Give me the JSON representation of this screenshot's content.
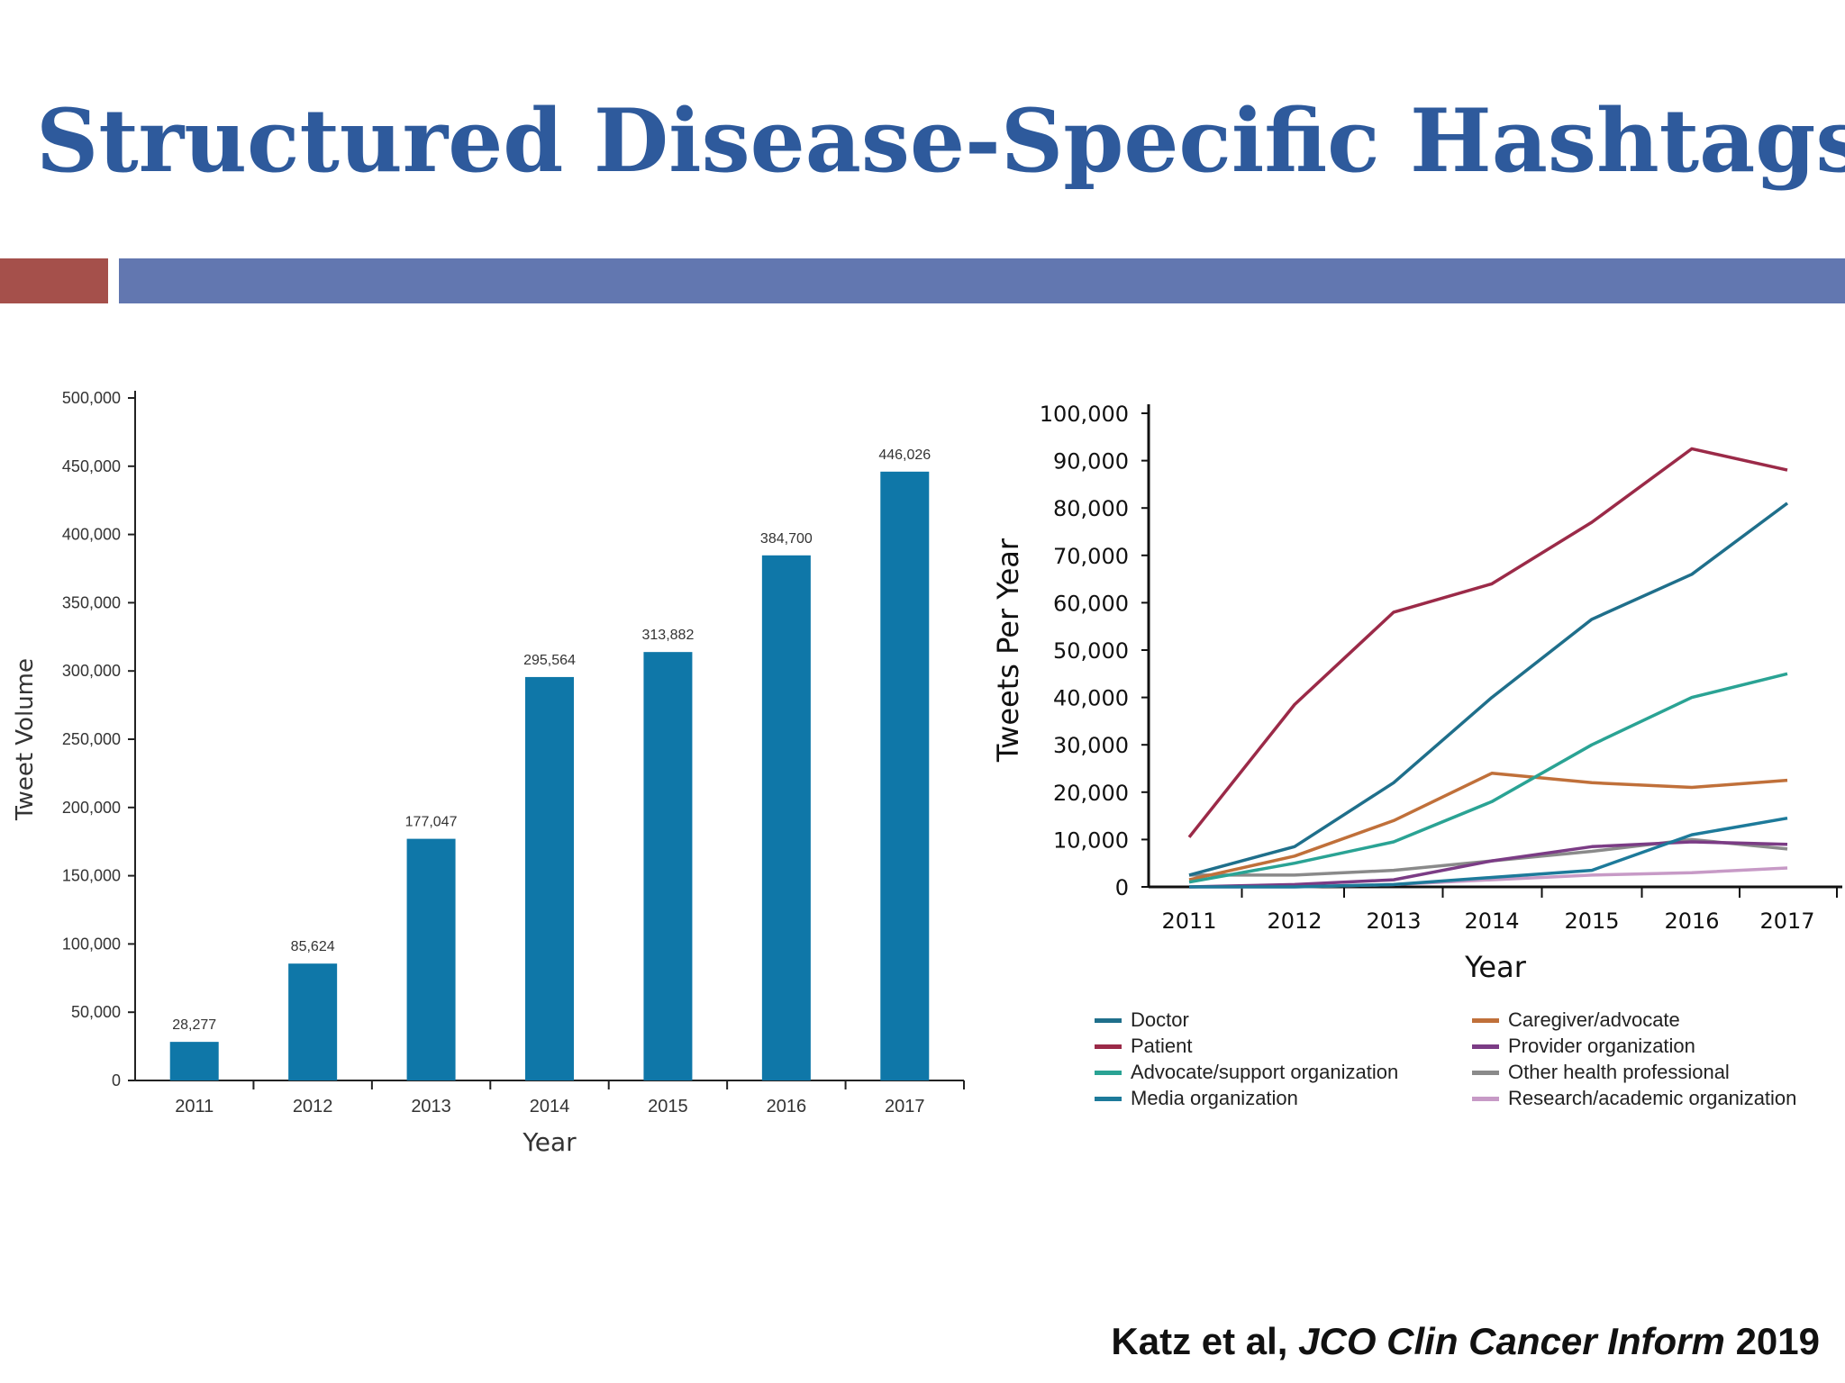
{
  "slide": {
    "title": "Structured Disease-Specific Hashtags",
    "citation": {
      "authors": "Katz et al,",
      "journal": "JCO Clin Cancer Inform",
      "year": "2019"
    },
    "accent_colors": {
      "left_bar": "#a5504b",
      "right_bar": "#6277b0",
      "title": "#2e5a9c"
    }
  },
  "chart_data": [
    {
      "type": "bar",
      "xlabel": "Year",
      "ylabel": "Tweet Volume",
      "ylim": [
        0,
        500000
      ],
      "yticks": [
        "0",
        "50,000",
        "100,000",
        "150,000",
        "200,000",
        "250,000",
        "300,000",
        "350,000",
        "400,000",
        "450,000",
        "500,000"
      ],
      "categories": [
        "2011",
        "2012",
        "2013",
        "2014",
        "2015",
        "2016",
        "2017"
      ],
      "values": [
        28277,
        85624,
        177047,
        295564,
        313882,
        384700,
        446026
      ],
      "value_labels": [
        "28,277",
        "85,624",
        "177,047",
        "295,564",
        "313,882",
        "384,700",
        "446,026"
      ],
      "bar_color": "#0f77a8",
      "grid": false
    },
    {
      "type": "line",
      "xlabel": "Year",
      "ylabel": "Tweets Per Year",
      "ylim": [
        0,
        100000
      ],
      "yticks": [
        "0",
        "10,000",
        "20,000",
        "30,000",
        "40,000",
        "50,000",
        "60,000",
        "70,000",
        "80,000",
        "90,000",
        "100,000"
      ],
      "x": [
        "2011",
        "2012",
        "2013",
        "2014",
        "2015",
        "2016",
        "2017"
      ],
      "grid": false,
      "legend_position": "bottom",
      "series": [
        {
          "name": "Doctor",
          "color": "#1f6f8b",
          "values": [
            2500,
            8500,
            22000,
            40000,
            56500,
            66000,
            81000
          ]
        },
        {
          "name": "Patient",
          "color": "#9b2a48",
          "values": [
            10500,
            38500,
            58000,
            64000,
            77000,
            92500,
            88000
          ]
        },
        {
          "name": "Advocate/support organization",
          "color": "#2aa394",
          "values": [
            1000,
            5000,
            9500,
            18000,
            30000,
            40000,
            45000
          ]
        },
        {
          "name": "Media organization",
          "color": "#1d7a9a",
          "values": [
            0,
            0,
            500,
            2000,
            3500,
            11000,
            14500
          ]
        },
        {
          "name": "Caregiver/advocate",
          "color": "#c0703a",
          "values": [
            1500,
            6500,
            14000,
            24000,
            22000,
            21000,
            22500
          ]
        },
        {
          "name": "Provider organization",
          "color": "#7b3c85",
          "values": [
            0,
            500,
            1500,
            5500,
            8500,
            9500,
            9000
          ]
        },
        {
          "name": "Other health professional",
          "color": "#8a8a8a",
          "values": [
            2500,
            2500,
            3500,
            5500,
            7500,
            10000,
            8000
          ]
        },
        {
          "name": "Research/academic organization",
          "color": "#c79ac6",
          "values": [
            0,
            0,
            500,
            1500,
            2500,
            3000,
            4000
          ]
        }
      ]
    }
  ]
}
